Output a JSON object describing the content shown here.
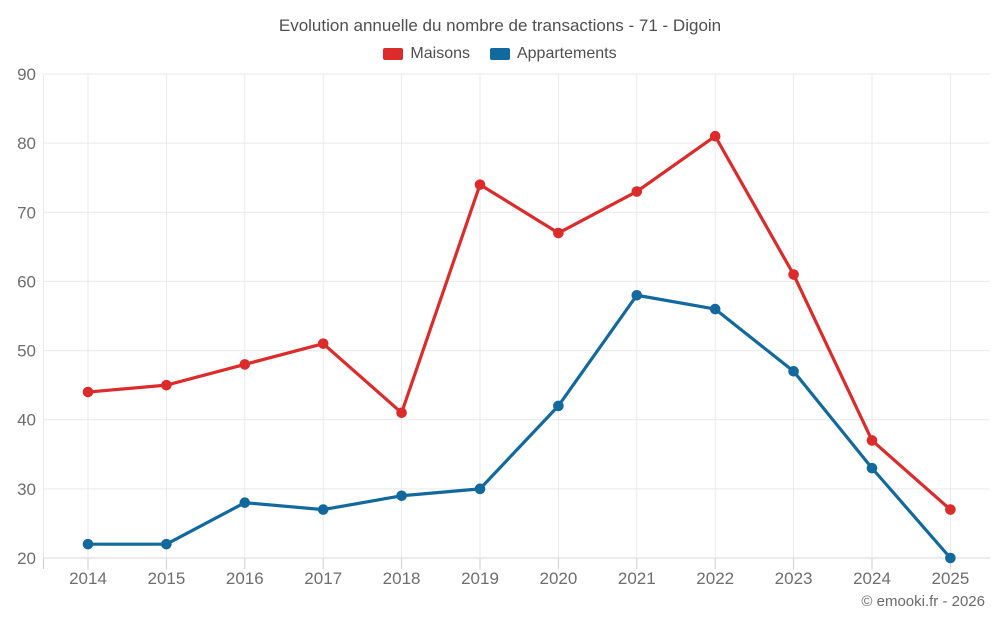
{
  "title": "Evolution annuelle du nombre de transactions - 71 - Digoin",
  "footer": "© emooki.fr - 2026",
  "colors": {
    "maisons": "#dc2b2b",
    "appartements": "#12699e",
    "gridline": "#e9e9e9",
    "axis_line": "#d9d9d9",
    "tick": "#cfcfcf",
    "title_text": "#4f4f4f",
    "axis_text": "#6e6e6e",
    "footer_text": "#6b6b6b"
  },
  "chart_data": {
    "type": "line",
    "title": "Evolution annuelle du nombre de transactions - 71 - Digoin",
    "categories": [
      "2014",
      "2015",
      "2016",
      "2017",
      "2018",
      "2019",
      "2020",
      "2021",
      "2022",
      "2023",
      "2024",
      "2025"
    ],
    "series": [
      {
        "name": "Maisons",
        "color": "#dc2b2b",
        "values": [
          44,
          45,
          48,
          51,
          41,
          74,
          67,
          73,
          81,
          61,
          37,
          27
        ]
      },
      {
        "name": "Appartements",
        "color": "#12699e",
        "values": [
          22,
          22,
          28,
          27,
          29,
          30,
          42,
          58,
          56,
          47,
          33,
          20
        ]
      }
    ],
    "ylim": [
      20,
      90
    ],
    "yticks": [
      20,
      30,
      40,
      50,
      60,
      70,
      80,
      90
    ],
    "grid": true,
    "legend_position": "top"
  }
}
